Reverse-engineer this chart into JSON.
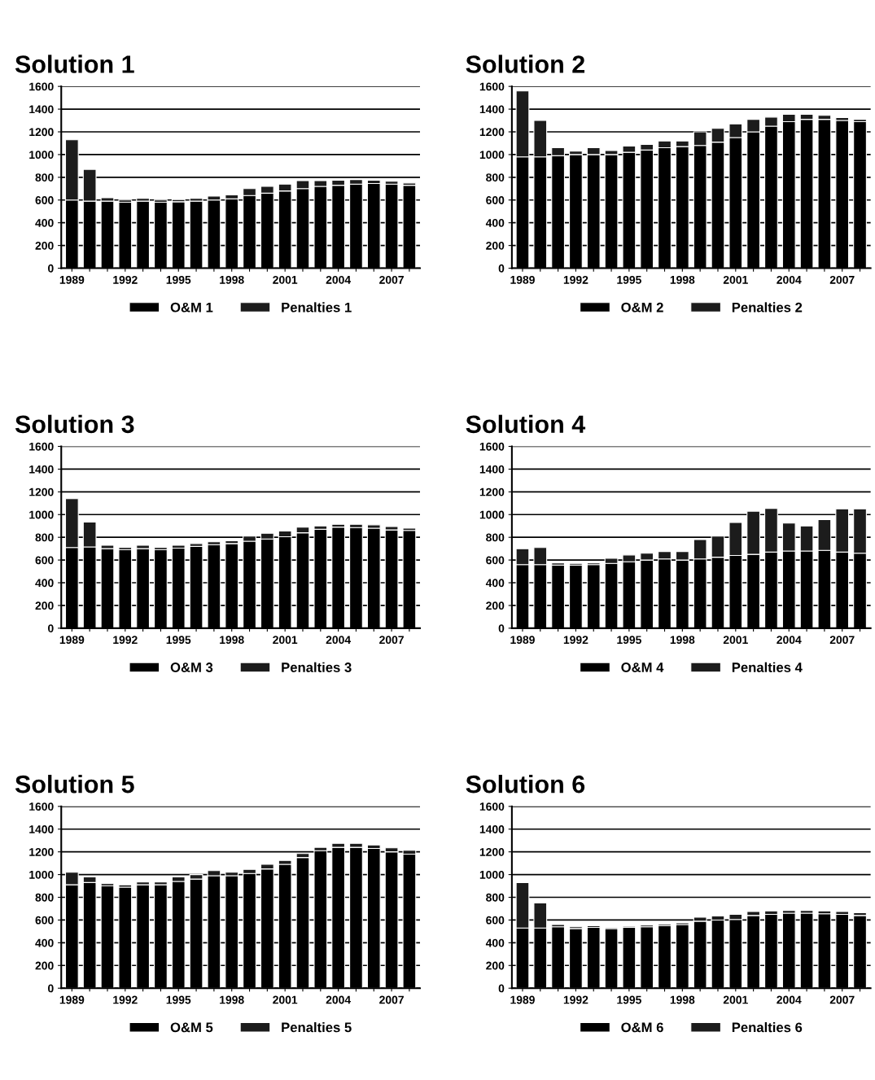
{
  "chart_data": [
    {
      "type": "bar",
      "title": "Solution 1",
      "stacked": true,
      "grid": "y",
      "legend": "bottom",
      "categories": [
        "1989",
        null,
        null,
        "1992",
        null,
        null,
        "1995",
        null,
        null,
        "1998",
        null,
        null,
        "2001",
        null,
        null,
        "2004",
        null,
        null,
        "2007",
        null
      ],
      "ylim": [
        0,
        1600
      ],
      "yticks": [
        0,
        200,
        400,
        600,
        800,
        1000,
        1200,
        1400,
        1600
      ],
      "series": [
        {
          "name": "O&M 1",
          "color": "#000000",
          "values": [
            600,
            590,
            590,
            580,
            590,
            580,
            585,
            590,
            600,
            610,
            640,
            660,
            680,
            700,
            720,
            730,
            740,
            745,
            740,
            730
          ]
        },
        {
          "name": "Penalties 1",
          "color": "#1c1c1c",
          "values": [
            530,
            280,
            30,
            20,
            25,
            20,
            20,
            25,
            35,
            35,
            60,
            60,
            60,
            70,
            50,
            45,
            40,
            30,
            25,
            20
          ]
        }
      ]
    },
    {
      "type": "bar",
      "title": "Solution 2",
      "stacked": true,
      "grid": "y",
      "legend": "bottom",
      "categories": [
        "1989",
        null,
        null,
        "1992",
        null,
        null,
        "1995",
        null,
        null,
        "1998",
        null,
        null,
        "2001",
        null,
        null,
        "2004",
        null,
        null,
        "2007",
        null
      ],
      "ylim": [
        0,
        1600
      ],
      "yticks": [
        0,
        200,
        400,
        600,
        800,
        1000,
        1200,
        1400,
        1600
      ],
      "series": [
        {
          "name": "O&M 2",
          "color": "#000000",
          "values": [
            980,
            980,
            990,
            1000,
            1000,
            1000,
            1020,
            1040,
            1060,
            1070,
            1080,
            1110,
            1150,
            1200,
            1250,
            1290,
            1310,
            1310,
            1300,
            1290
          ]
        },
        {
          "name": "Penalties 2",
          "color": "#1c1c1c",
          "values": [
            580,
            320,
            70,
            30,
            60,
            35,
            55,
            50,
            60,
            50,
            120,
            120,
            120,
            110,
            80,
            65,
            45,
            35,
            25,
            20
          ]
        }
      ]
    },
    {
      "type": "bar",
      "title": "Solution 3",
      "stacked": true,
      "grid": "y",
      "legend": "bottom",
      "categories": [
        "1989",
        null,
        null,
        "1992",
        null,
        null,
        "1995",
        null,
        null,
        "1998",
        null,
        null,
        "2001",
        null,
        null,
        "2004",
        null,
        null,
        "2007",
        null
      ],
      "ylim": [
        0,
        1600
      ],
      "yticks": [
        0,
        200,
        400,
        600,
        800,
        1000,
        1200,
        1400,
        1600
      ],
      "series": [
        {
          "name": "O&M 3",
          "color": "#000000",
          "values": [
            710,
            715,
            700,
            690,
            700,
            690,
            705,
            720,
            735,
            745,
            765,
            785,
            805,
            840,
            870,
            890,
            885,
            880,
            865,
            860
          ]
        },
        {
          "name": "Penalties 3",
          "color": "#1c1c1c",
          "values": [
            430,
            220,
            30,
            20,
            30,
            20,
            25,
            25,
            25,
            25,
            45,
            50,
            50,
            50,
            30,
            25,
            30,
            30,
            30,
            20
          ]
        }
      ]
    },
    {
      "type": "bar",
      "title": "Solution 4",
      "stacked": true,
      "grid": "y",
      "legend": "bottom",
      "categories": [
        "1989",
        null,
        null,
        "1992",
        null,
        null,
        "1995",
        null,
        null,
        "1998",
        null,
        null,
        "2001",
        null,
        null,
        "2004",
        null,
        null,
        "2007",
        null
      ],
      "ylim": [
        0,
        1600
      ],
      "yticks": [
        0,
        200,
        400,
        600,
        800,
        1000,
        1200,
        1400,
        1600
      ],
      "series": [
        {
          "name": "O&M 4",
          "color": "#000000",
          "values": [
            560,
            560,
            555,
            555,
            560,
            570,
            585,
            600,
            610,
            600,
            610,
            625,
            640,
            650,
            670,
            680,
            680,
            685,
            670,
            660
          ]
        },
        {
          "name": "Penalties 4",
          "color": "#1c1c1c",
          "values": [
            140,
            150,
            20,
            15,
            15,
            45,
            60,
            60,
            65,
            75,
            170,
            185,
            290,
            380,
            385,
            245,
            220,
            270,
            380,
            390
          ]
        }
      ]
    },
    {
      "type": "bar",
      "title": "Solution 5",
      "stacked": true,
      "grid": "y",
      "legend": "bottom",
      "categories": [
        "1989",
        null,
        null,
        "1992",
        null,
        null,
        "1995",
        null,
        null,
        "1998",
        null,
        null,
        "2001",
        null,
        null,
        "2004",
        null,
        null,
        "2007",
        null
      ],
      "ylim": [
        0,
        1600
      ],
      "yticks": [
        0,
        200,
        400,
        600,
        800,
        1000,
        1200,
        1400,
        1600
      ],
      "series": [
        {
          "name": "O&M 5",
          "color": "#000000",
          "values": [
            910,
            930,
            900,
            890,
            910,
            910,
            940,
            960,
            990,
            990,
            1010,
            1050,
            1090,
            1150,
            1210,
            1240,
            1240,
            1230,
            1200,
            1180
          ]
        },
        {
          "name": "Penalties 5",
          "color": "#1c1c1c",
          "values": [
            110,
            50,
            20,
            20,
            25,
            25,
            40,
            40,
            45,
            30,
            35,
            40,
            35,
            35,
            30,
            35,
            35,
            30,
            35,
            35
          ]
        }
      ]
    },
    {
      "type": "bar",
      "title": "Solution 6",
      "stacked": true,
      "grid": "y",
      "legend": "bottom",
      "categories": [
        "1989",
        null,
        null,
        "1992",
        null,
        null,
        "1995",
        null,
        null,
        "1998",
        null,
        null,
        "2001",
        null,
        null,
        "2004",
        null,
        null,
        "2007",
        null
      ],
      "ylim": [
        0,
        1600
      ],
      "yticks": [
        0,
        200,
        400,
        600,
        800,
        1000,
        1200,
        1400,
        1600
      ],
      "series": [
        {
          "name": "O&M 6",
          "color": "#000000",
          "values": [
            530,
            530,
            540,
            525,
            535,
            525,
            535,
            540,
            550,
            560,
            590,
            600,
            605,
            640,
            650,
            660,
            660,
            655,
            650,
            640
          ]
        },
        {
          "name": "Penalties 6",
          "color": "#1c1c1c",
          "values": [
            400,
            220,
            20,
            15,
            15,
            10,
            10,
            15,
            15,
            15,
            35,
            35,
            45,
            35,
            30,
            25,
            25,
            25,
            25,
            25
          ]
        }
      ]
    }
  ]
}
